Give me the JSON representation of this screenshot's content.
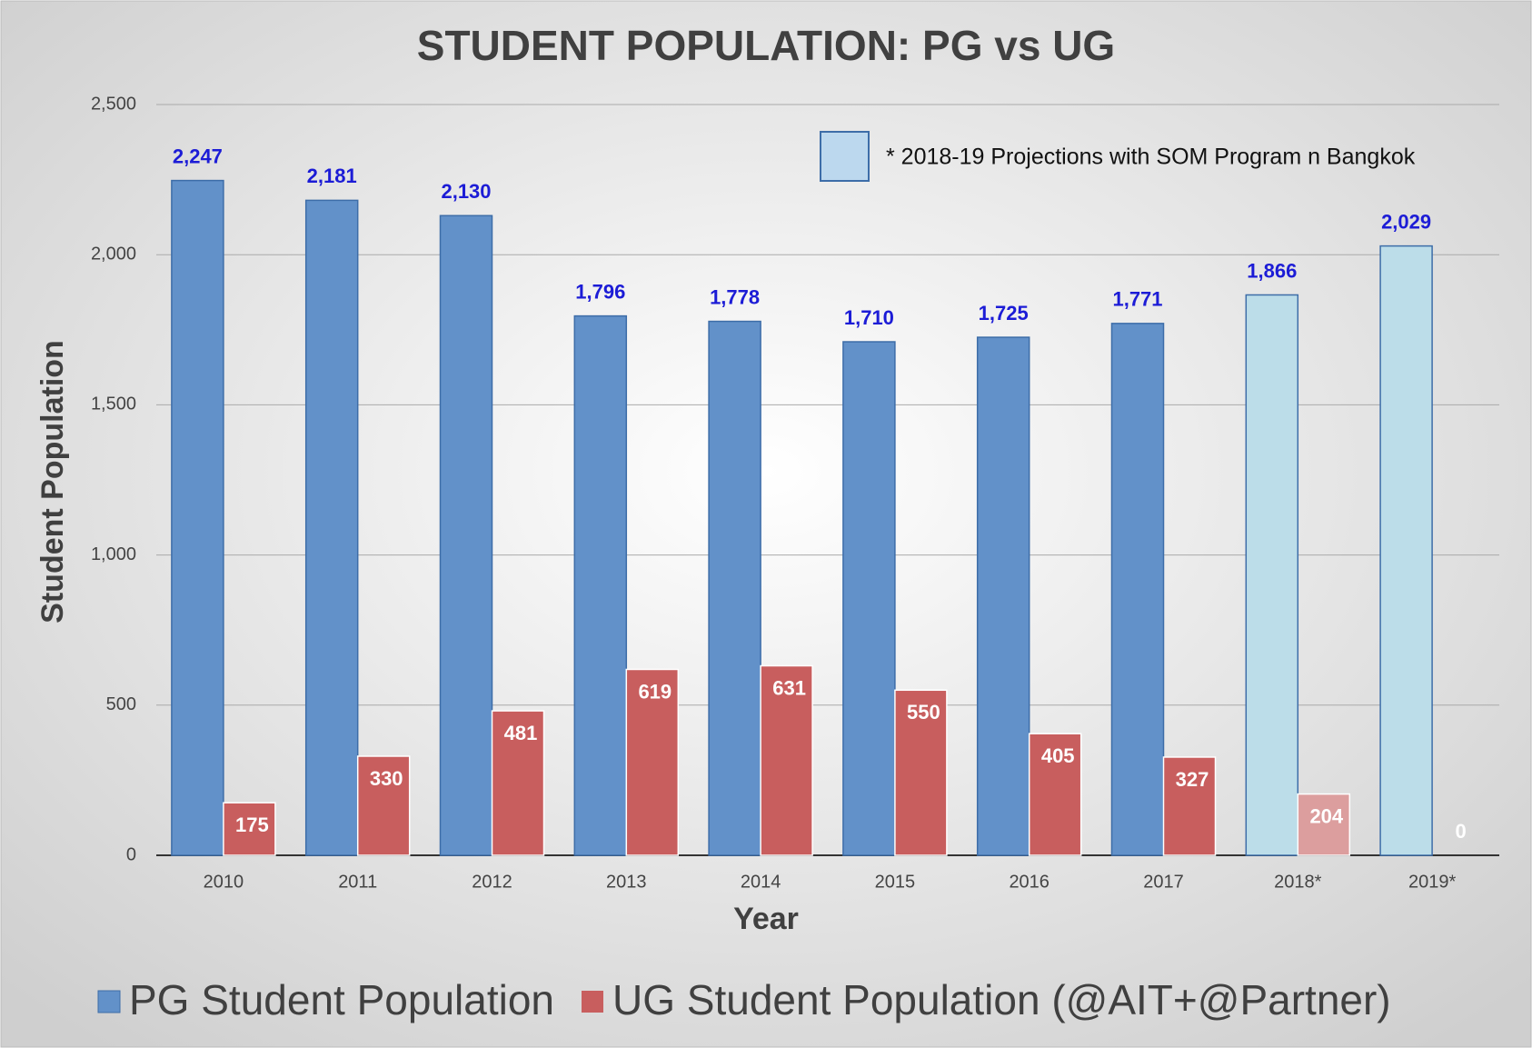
{
  "chart_data": {
    "type": "bar",
    "title": "STUDENT POPULATION: PG vs UG",
    "x_label": "Year",
    "y_label": "Student Population",
    "categories": [
      "2010",
      "2011",
      "2012",
      "2013",
      "2014",
      "2015",
      "2016",
      "2017",
      "2018*",
      "2019*"
    ],
    "series": [
      {
        "name": "PG Student Population",
        "color": "#6291c9",
        "colors": [
          "#6291c9",
          "#6291c9",
          "#6291c9",
          "#6291c9",
          "#6291c9",
          "#6291c9",
          "#6291c9",
          "#6291c9",
          "#bcdde9",
          "#bcdde9"
        ],
        "values": [
          2247,
          2181,
          2130,
          1796,
          1778,
          1710,
          1725,
          1771,
          1866,
          2029
        ],
        "value_labels": [
          "2,247",
          "2,181",
          "2,130",
          "1,796",
          "1,778",
          "1,710",
          "1,725",
          "1,771",
          "1,866",
          "2,029"
        ]
      },
      {
        "name": "UG Student Population (@AIT+@Partner)",
        "color": "#c85e5e",
        "colors": [
          "#c85e5e",
          "#c85e5e",
          "#c85e5e",
          "#c85e5e",
          "#c85e5e",
          "#c85e5e",
          "#c85e5e",
          "#c85e5e",
          "#dc9e9e",
          "#dc9e9e"
        ],
        "values": [
          175,
          330,
          481,
          619,
          631,
          550,
          405,
          327,
          204,
          0
        ]
      }
    ],
    "annotation": {
      "text": "* 2018-19 Projections with SOM Program n Bangkok",
      "color": "#bcd8ee"
    },
    "ylim": [
      0,
      2500
    ],
    "yticks": [
      0,
      500,
      {
        "value": 1000,
        "label": "1,000"
      },
      {
        "value": 1500,
        "label": "1,500"
      },
      {
        "value": 2000,
        "label": "2,000"
      },
      {
        "value": 2500,
        "label": "2,500"
      }
    ],
    "grid": true,
    "legend": "bottom"
  }
}
